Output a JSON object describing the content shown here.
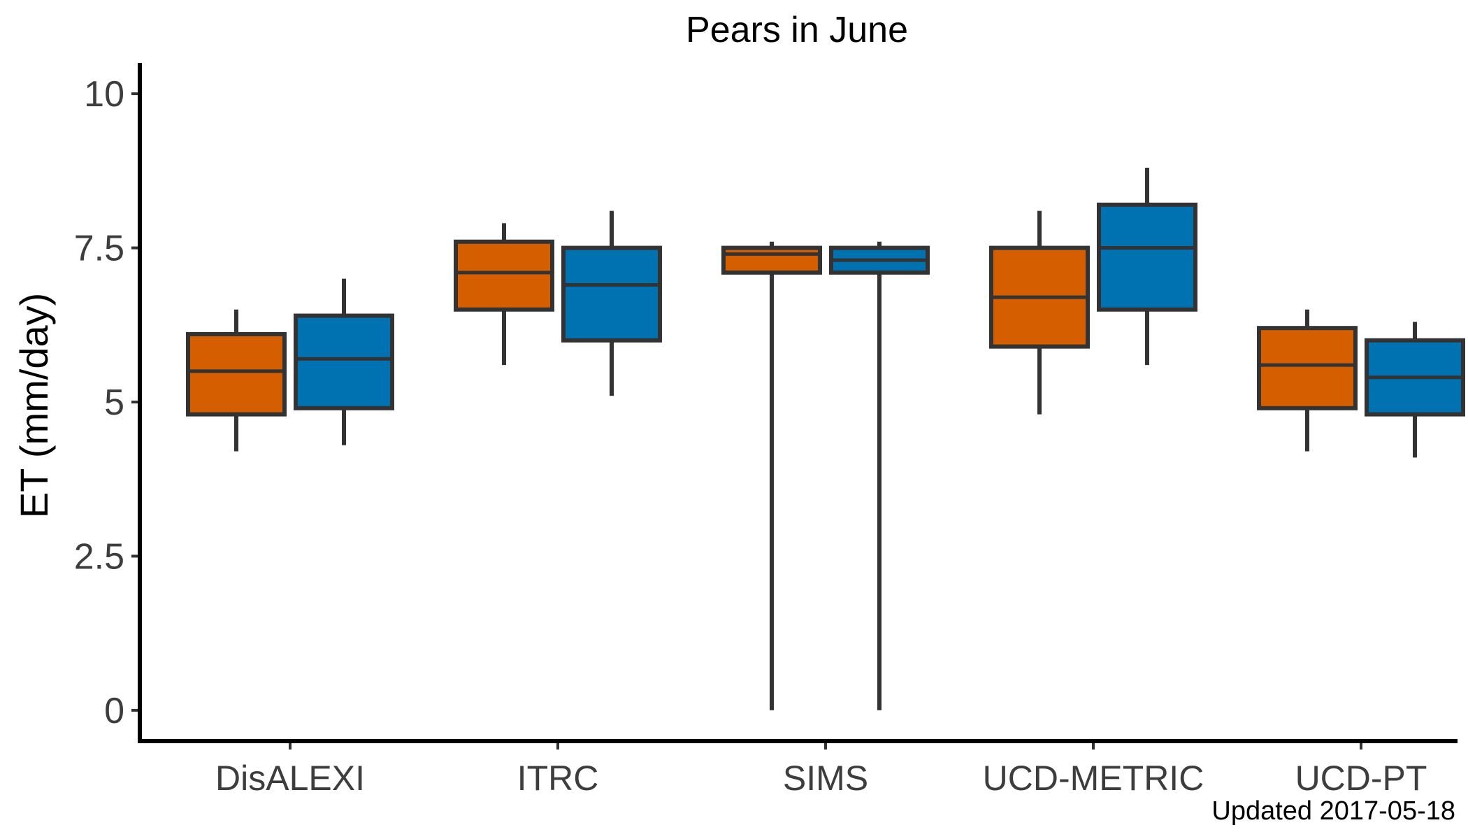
{
  "chart_data": {
    "type": "box",
    "title": "Pears in June",
    "xlabel": "",
    "ylabel": "ET (mm/day)",
    "caption": "Updated  2017-05-18",
    "categories": [
      "DisALEXI",
      "ITRC",
      "SIMS",
      "UCD-METRIC",
      "UCD-PT"
    ],
    "y_ticks": [
      {
        "value": 0,
        "label": "0"
      },
      {
        "value": 2.5,
        "label": "2.5"
      },
      {
        "value": 5,
        "label": "5"
      },
      {
        "value": 7.5,
        "label": "7.5"
      },
      {
        "value": 10,
        "label": "10"
      }
    ],
    "ylim": [
      -0.5,
      10.5
    ],
    "grid": false,
    "legend": "none",
    "series": [
      {
        "color": "#d55e00",
        "boxes": [
          {
            "min": 4.2,
            "q1": 4.8,
            "median": 5.5,
            "q3": 6.1,
            "max": 6.5
          },
          {
            "min": 5.6,
            "q1": 6.5,
            "median": 7.1,
            "q3": 7.6,
            "max": 7.9
          },
          {
            "min": 0.0,
            "q1": 7.1,
            "median": 7.4,
            "q3": 7.5,
            "max": 7.6
          },
          {
            "min": 4.8,
            "q1": 5.9,
            "median": 6.7,
            "q3": 7.5,
            "max": 8.1
          },
          {
            "min": 4.2,
            "q1": 4.9,
            "median": 5.6,
            "q3": 6.2,
            "max": 6.5
          }
        ]
      },
      {
        "color": "#0072b2",
        "boxes": [
          {
            "min": 4.3,
            "q1": 4.9,
            "median": 5.7,
            "q3": 6.4,
            "max": 7.0
          },
          {
            "min": 5.1,
            "q1": 6.0,
            "median": 6.9,
            "q3": 7.5,
            "max": 8.1
          },
          {
            "min": 0.0,
            "q1": 7.1,
            "median": 7.3,
            "q3": 7.5,
            "max": 7.6
          },
          {
            "min": 5.6,
            "q1": 6.5,
            "median": 7.5,
            "q3": 8.2,
            "max": 8.8
          },
          {
            "min": 4.1,
            "q1": 4.8,
            "median": 5.4,
            "q3": 6.0,
            "max": 6.3
          }
        ]
      }
    ]
  }
}
